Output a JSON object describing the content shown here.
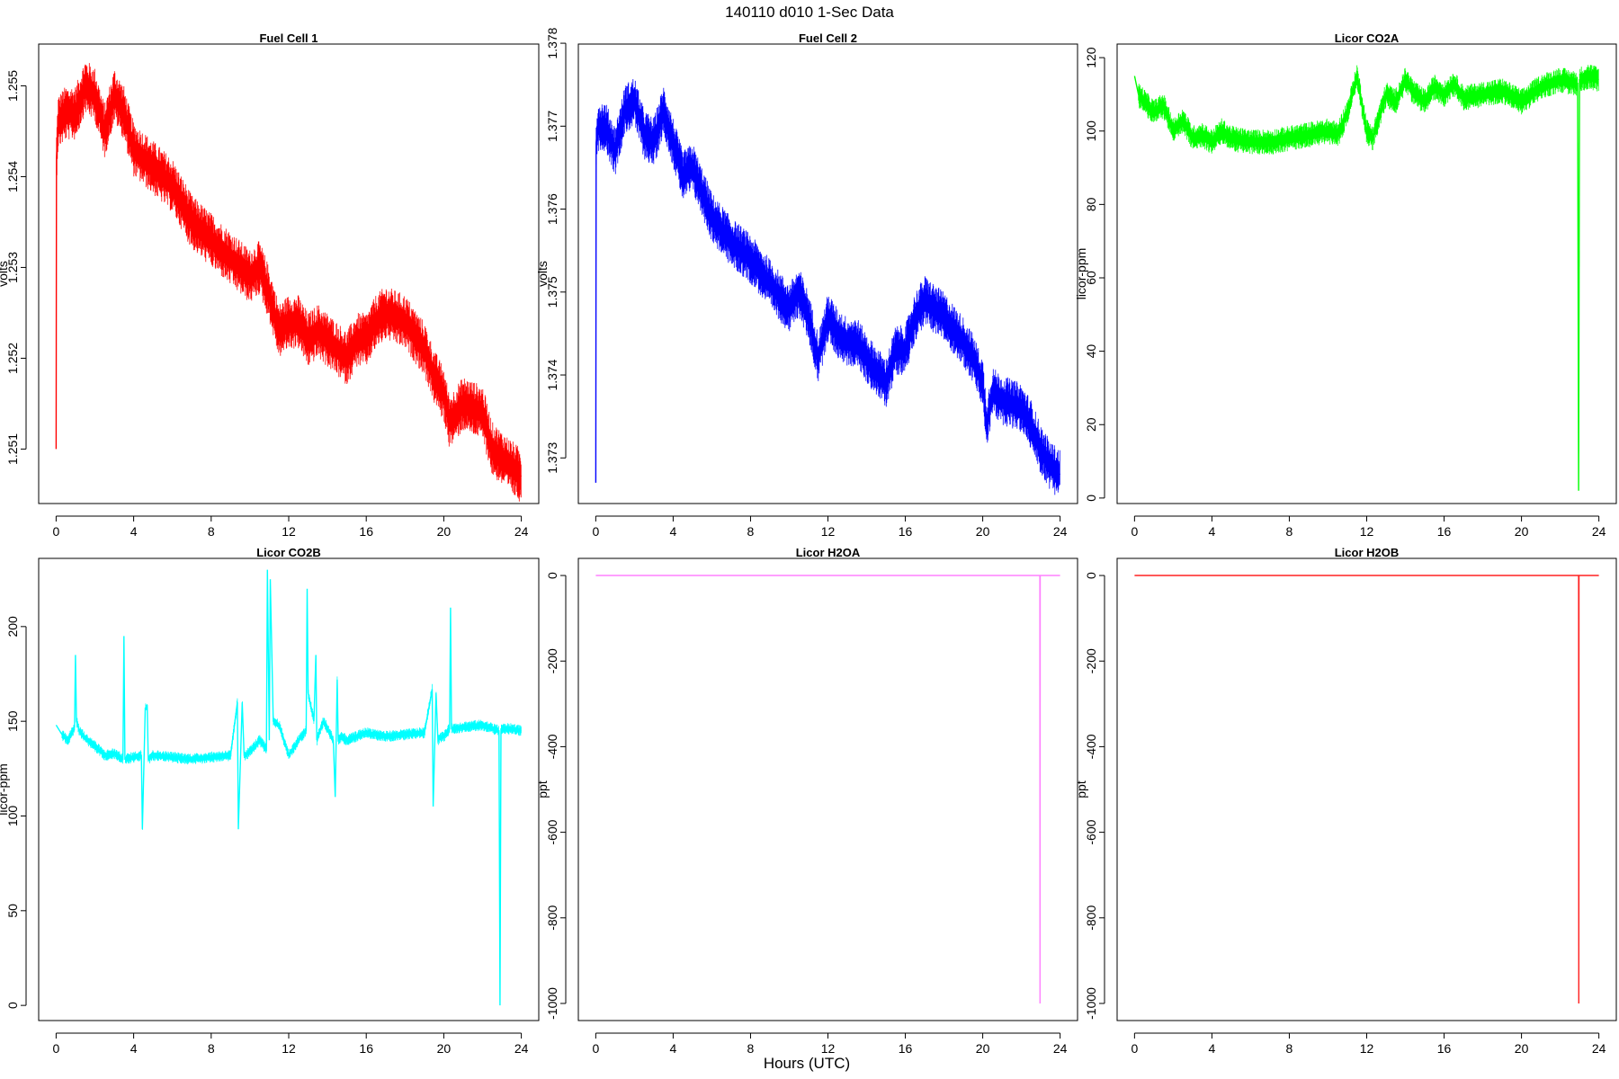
{
  "figure": {
    "title": "140110   d010   1-Sec Data",
    "xlabel": "Hours (UTC)",
    "x_ticks": [
      0,
      4,
      8,
      12,
      16,
      20,
      24
    ]
  },
  "chart_data": [
    {
      "type": "line",
      "title": "Fuel Cell 1",
      "ylabel": "volts",
      "color": "#ff0000",
      "xlim": [
        -0.9,
        24.9
      ],
      "ylim": [
        1.2504,
        1.25546
      ],
      "y_ticks": [
        1.251,
        1.252,
        1.253,
        1.254,
        1.255
      ],
      "y_tick_labels": [
        "1.251",
        "1.252",
        "1.253",
        "1.254",
        "1.255"
      ],
      "noise": 0.0003,
      "x": [
        0,
        0.02,
        0.1,
        0.5,
        1,
        1.5,
        2,
        2.5,
        3,
        3.5,
        4,
        4.5,
        5,
        6,
        7,
        8,
        9,
        10,
        10.5,
        11,
        11.5,
        12,
        12.5,
        13,
        13.5,
        14,
        15,
        15.5,
        16,
        16.5,
        17,
        18,
        19,
        19.5,
        20,
        20.3,
        21,
        22,
        22.5,
        23,
        23.5,
        24
      ],
      "y": [
        1.251,
        1.2542,
        1.2546,
        1.2547,
        1.2547,
        1.255,
        1.2549,
        1.2545,
        1.2549,
        1.2547,
        1.2543,
        1.2542,
        1.2541,
        1.2539,
        1.2535,
        1.2533,
        1.2531,
        1.2529,
        1.253,
        1.2527,
        1.2523,
        1.2524,
        1.2524,
        1.2522,
        1.2523,
        1.2522,
        1.252,
        1.2522,
        1.2522,
        1.2524,
        1.2525,
        1.2524,
        1.2521,
        1.2518,
        1.2516,
        1.2513,
        1.2515,
        1.2514,
        1.251,
        1.2509,
        1.2508,
        1.2507
      ]
    },
    {
      "type": "line",
      "title": "Fuel Cell 2",
      "ylabel": "volts",
      "color": "#0000ff",
      "xlim": [
        -0.9,
        24.9
      ],
      "ylim": [
        1.37245,
        1.37799
      ],
      "y_ticks": [
        1.373,
        1.374,
        1.375,
        1.376,
        1.377,
        1.378
      ],
      "y_tick_labels": [
        "1.373",
        "1.374",
        "1.375",
        "1.376",
        "1.377",
        "1.378"
      ],
      "noise": 0.0003,
      "x": [
        0,
        0.02,
        0.1,
        0.5,
        1,
        1.5,
        2,
        2.5,
        3,
        3.5,
        4,
        4.5,
        5,
        6,
        7,
        8,
        9,
        10,
        10.5,
        11,
        11.5,
        12,
        12.5,
        13,
        13.5,
        14,
        15,
        15.5,
        16,
        16.5,
        17,
        17.5,
        18,
        19,
        19.5,
        20,
        20.2,
        20.5,
        21,
        22,
        22.5,
        23,
        23.5,
        24
      ],
      "y": [
        1.3727,
        1.3768,
        1.377,
        1.377,
        1.3767,
        1.3772,
        1.3773,
        1.3769,
        1.3768,
        1.3772,
        1.3768,
        1.3764,
        1.3765,
        1.3759,
        1.3756,
        1.3754,
        1.3751,
        1.3748,
        1.375,
        1.3747,
        1.3742,
        1.3747,
        1.3745,
        1.3744,
        1.3744,
        1.3742,
        1.3739,
        1.3743,
        1.3743,
        1.3747,
        1.3749,
        1.3748,
        1.3747,
        1.3744,
        1.3742,
        1.3739,
        1.3734,
        1.3738,
        1.3737,
        1.3736,
        1.3734,
        1.3731,
        1.3729,
        1.3728
      ]
    },
    {
      "type": "line",
      "title": "Licor CO2A",
      "ylabel": "licor-ppm",
      "color": "#00ff00",
      "xlim": [
        -0.9,
        24.9
      ],
      "ylim": [
        -1.5,
        123.7
      ],
      "y_ticks": [
        0,
        20,
        40,
        60,
        80,
        100,
        120
      ],
      "y_tick_labels": [
        "0",
        "20",
        "40",
        "60",
        "80",
        "100",
        "120"
      ],
      "noise": 3.5,
      "x": [
        0,
        0.2,
        0.5,
        1,
        1.5,
        2,
        2.5,
        3,
        3.5,
        4,
        4.5,
        5,
        6,
        7,
        8,
        9,
        10,
        10.5,
        11,
        11.5,
        12,
        12.3,
        13,
        13.5,
        14,
        14.5,
        15,
        15.5,
        16,
        16.5,
        17,
        18,
        19,
        20,
        20.5,
        21,
        22,
        22.7,
        22.9,
        22.95,
        23.0,
        23.5,
        24
      ],
      "y": [
        115,
        110,
        108,
        105,
        107,
        100,
        103,
        98,
        99,
        97,
        100,
        98,
        97,
        97,
        98,
        99,
        100,
        99,
        105,
        115,
        100,
        98,
        110,
        108,
        114,
        110,
        108,
        112,
        110,
        113,
        109,
        110,
        111,
        108,
        110,
        112,
        114,
        113,
        113,
        2,
        114,
        115,
        114
      ]
    },
    {
      "type": "line",
      "title": "Licor CO2B",
      "ylabel": "licor-ppm",
      "color": "#00ffff",
      "xlim": [
        -0.9,
        24.9
      ],
      "ylim": [
        -8,
        236
      ],
      "y_ticks": [
        0,
        50,
        100,
        150,
        200
      ],
      "y_tick_labels": [
        "0",
        "50",
        "100",
        "150",
        "200"
      ],
      "noise": 3.0,
      "x": [
        0,
        0.3,
        0.6,
        0.95,
        1.0,
        1.05,
        1.2,
        1.5,
        2,
        2.5,
        3,
        3.45,
        3.5,
        3.55,
        4,
        4.4,
        4.45,
        4.6,
        4.7,
        4.75,
        5,
        6,
        7,
        8,
        9,
        9.35,
        9.4,
        9.6,
        9.7,
        9.75,
        10,
        10.5,
        10.85,
        10.9,
        11.0,
        11.05,
        11.2,
        11.5,
        12,
        12.5,
        12.9,
        12.95,
        13.0,
        13.3,
        13.4,
        13.45,
        13.6,
        13.8,
        14.3,
        14.4,
        14.5,
        14.55,
        14.7,
        15,
        16,
        17,
        18,
        19,
        19.4,
        19.45,
        19.6,
        19.7,
        19.75,
        20,
        20.3,
        20.35,
        20.4,
        21,
        22,
        22.85,
        22.9,
        22.95,
        23.5,
        24
      ],
      "y": [
        148,
        143,
        140,
        147,
        185,
        150,
        145,
        141,
        137,
        132,
        133,
        130,
        195,
        130,
        131,
        132,
        93,
        157,
        158,
        130,
        132,
        131,
        130,
        131,
        132,
        160,
        93,
        160,
        132,
        132,
        134,
        140,
        135,
        230,
        140,
        225,
        150,
        148,
        132,
        140,
        145,
        220,
        165,
        150,
        185,
        140,
        145,
        150,
        140,
        110,
        172,
        140,
        142,
        140,
        144,
        142,
        143,
        144,
        167,
        105,
        165,
        140,
        141,
        142,
        146,
        210,
        146,
        147,
        148,
        145,
        0,
        146,
        146,
        145
      ]
    },
    {
      "type": "line",
      "title": "Licor H2OA",
      "ylabel": "ppt",
      "color": "#ff80ff",
      "xlim": [
        -0.9,
        24.9
      ],
      "ylim": [
        -1040,
        40
      ],
      "y_ticks": [
        0,
        -200,
        -400,
        -600,
        -800,
        -1000
      ],
      "y_tick_labels": [
        "0",
        "-200",
        "-400",
        "-600",
        "-800",
        "-1000"
      ],
      "noise": 0,
      "x": [
        0,
        22.95,
        22.96,
        22.97,
        24
      ],
      "y": [
        0,
        0,
        -1000,
        0,
        0
      ]
    },
    {
      "type": "line",
      "title": "Licor H2OB",
      "ylabel": "ppt",
      "color": "#ff2020",
      "xlim": [
        -0.9,
        24.9
      ],
      "ylim": [
        -1040,
        40
      ],
      "y_ticks": [
        0,
        -200,
        -400,
        -600,
        -800,
        -1000
      ],
      "y_tick_labels": [
        "0",
        "-200",
        "-400",
        "-600",
        "-800",
        "-1000"
      ],
      "noise": 0,
      "x": [
        0,
        22.95,
        22.96,
        22.97,
        24
      ],
      "y": [
        0,
        0,
        -1000,
        0,
        0
      ]
    }
  ]
}
